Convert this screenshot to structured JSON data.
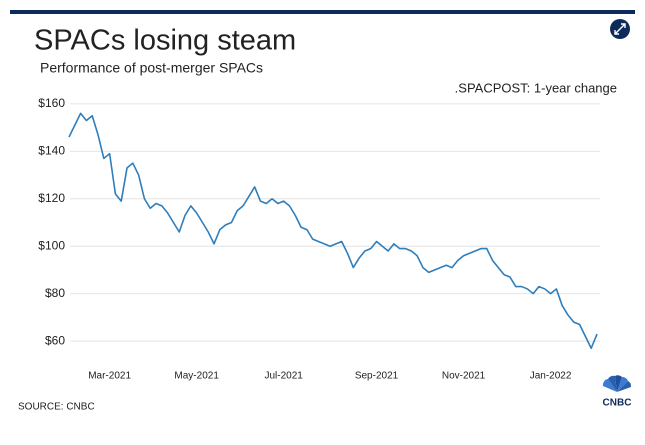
{
  "chart_data": {
    "type": "line",
    "title": "SPACs losing steam",
    "subtitle": "Performance of post-merger SPACs",
    "annotation": ".SPACPOST: 1-year change",
    "source": "SOURCE: CNBC",
    "logo": "CNBC",
    "categories": [
      null,
      null,
      null,
      null,
      null,
      null,
      null,
      "Mar-2021",
      null,
      null,
      null,
      null,
      null,
      null,
      null,
      null,
      null,
      null,
      null,
      null,
      null,
      null,
      "May-2021",
      null,
      null,
      null,
      null,
      null,
      null,
      null,
      null,
      null,
      null,
      null,
      null,
      null,
      null,
      "Jul-2021",
      null,
      null,
      null,
      null,
      null,
      null,
      null,
      null,
      null,
      null,
      null,
      null,
      null,
      null,
      null,
      "Sep-2021",
      null,
      null,
      null,
      null,
      null,
      null,
      null,
      null,
      null,
      null,
      null,
      null,
      null,
      null,
      "Nov-2021",
      null,
      null,
      null,
      null,
      null,
      null,
      null,
      null,
      null,
      null,
      null,
      null,
      null,
      null,
      "Jan-2022",
      null,
      null,
      null,
      null,
      null,
      null,
      null,
      null
    ],
    "values": [
      146,
      151,
      156,
      153,
      155,
      147,
      137,
      139,
      122,
      119,
      133,
      135,
      130,
      120,
      116,
      118,
      117,
      114,
      110,
      106,
      113,
      117,
      114,
      110,
      106,
      101,
      107,
      109,
      110,
      115,
      117,
      121,
      125,
      119,
      118,
      120,
      118,
      119,
      117,
      113,
      108,
      107,
      103,
      102,
      101,
      100,
      101,
      102,
      97,
      91,
      95,
      98,
      99,
      102,
      100,
      98,
      101,
      99,
      99,
      98,
      96,
      91,
      89,
      90,
      91,
      92,
      91,
      94,
      96,
      97,
      98,
      99,
      99,
      94,
      91,
      88,
      87,
      83,
      83,
      82,
      80,
      83,
      82,
      80,
      82,
      75,
      71,
      68,
      67,
      62,
      57,
      63
    ],
    "color": "#2f7ebc",
    "ylim": [
      55,
      165
    ],
    "yticks": [
      {
        "value": 60,
        "label": "$60"
      },
      {
        "value": 80,
        "label": "$80"
      },
      {
        "value": 100,
        "label": "$100"
      },
      {
        "value": 120,
        "label": "$120"
      },
      {
        "value": 140,
        "label": "$140"
      },
      {
        "value": 160,
        "label": "$160"
      }
    ],
    "grid": true
  }
}
